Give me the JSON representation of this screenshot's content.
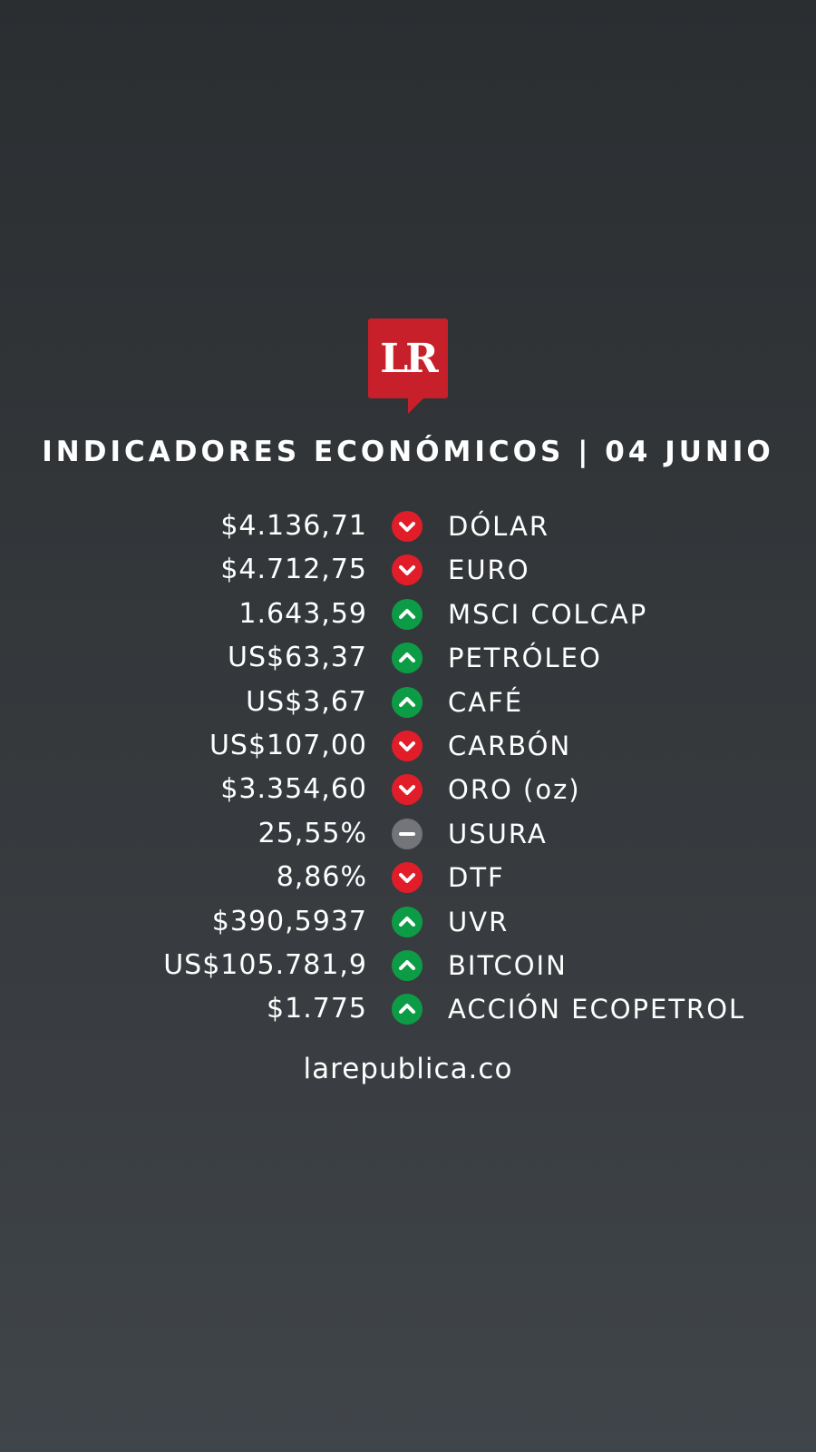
{
  "logo": {
    "text": "LR",
    "color": "#c8202b"
  },
  "title": "INDICADORES ECONÓMICOS | 04 JUNIO",
  "colors": {
    "down": "#e11d2a",
    "up": "#0d9c46",
    "neutral": "#737578"
  },
  "indicators": [
    {
      "value": "$4.136,71",
      "trend": "down",
      "icon": "chevron-down-icon",
      "label": "DÓLAR"
    },
    {
      "value": "$4.712,75",
      "trend": "down",
      "icon": "chevron-down-icon",
      "label": "EURO"
    },
    {
      "value": "1.643,59",
      "trend": "up",
      "icon": "chevron-up-icon",
      "label": "MSCI COLCAP"
    },
    {
      "value": "US$63,37",
      "trend": "up",
      "icon": "chevron-up-icon",
      "label": "PETRÓLEO"
    },
    {
      "value": "US$3,67",
      "trend": "up",
      "icon": "chevron-up-icon",
      "label": "CAFÉ"
    },
    {
      "value": "US$107,00",
      "trend": "down",
      "icon": "chevron-down-icon",
      "label": "CARBÓN"
    },
    {
      "value": "$3.354,60",
      "trend": "down",
      "icon": "chevron-down-icon",
      "label": "ORO (oz)"
    },
    {
      "value": "25,55%",
      "trend": "neutral",
      "icon": "minus-icon",
      "label": "USURA"
    },
    {
      "value": "8,86%",
      "trend": "down",
      "icon": "chevron-down-icon",
      "label": "DTF"
    },
    {
      "value": "$390,5937",
      "trend": "up",
      "icon": "chevron-up-icon",
      "label": "UVR"
    },
    {
      "value": "US$105.781,9",
      "trend": "up",
      "icon": "chevron-up-icon",
      "label": "BITCOIN"
    },
    {
      "value": "$1.775",
      "trend": "up",
      "icon": "chevron-up-icon",
      "label": "ACCIÓN ECOPETROL"
    }
  ],
  "footer": "larepublica.co"
}
